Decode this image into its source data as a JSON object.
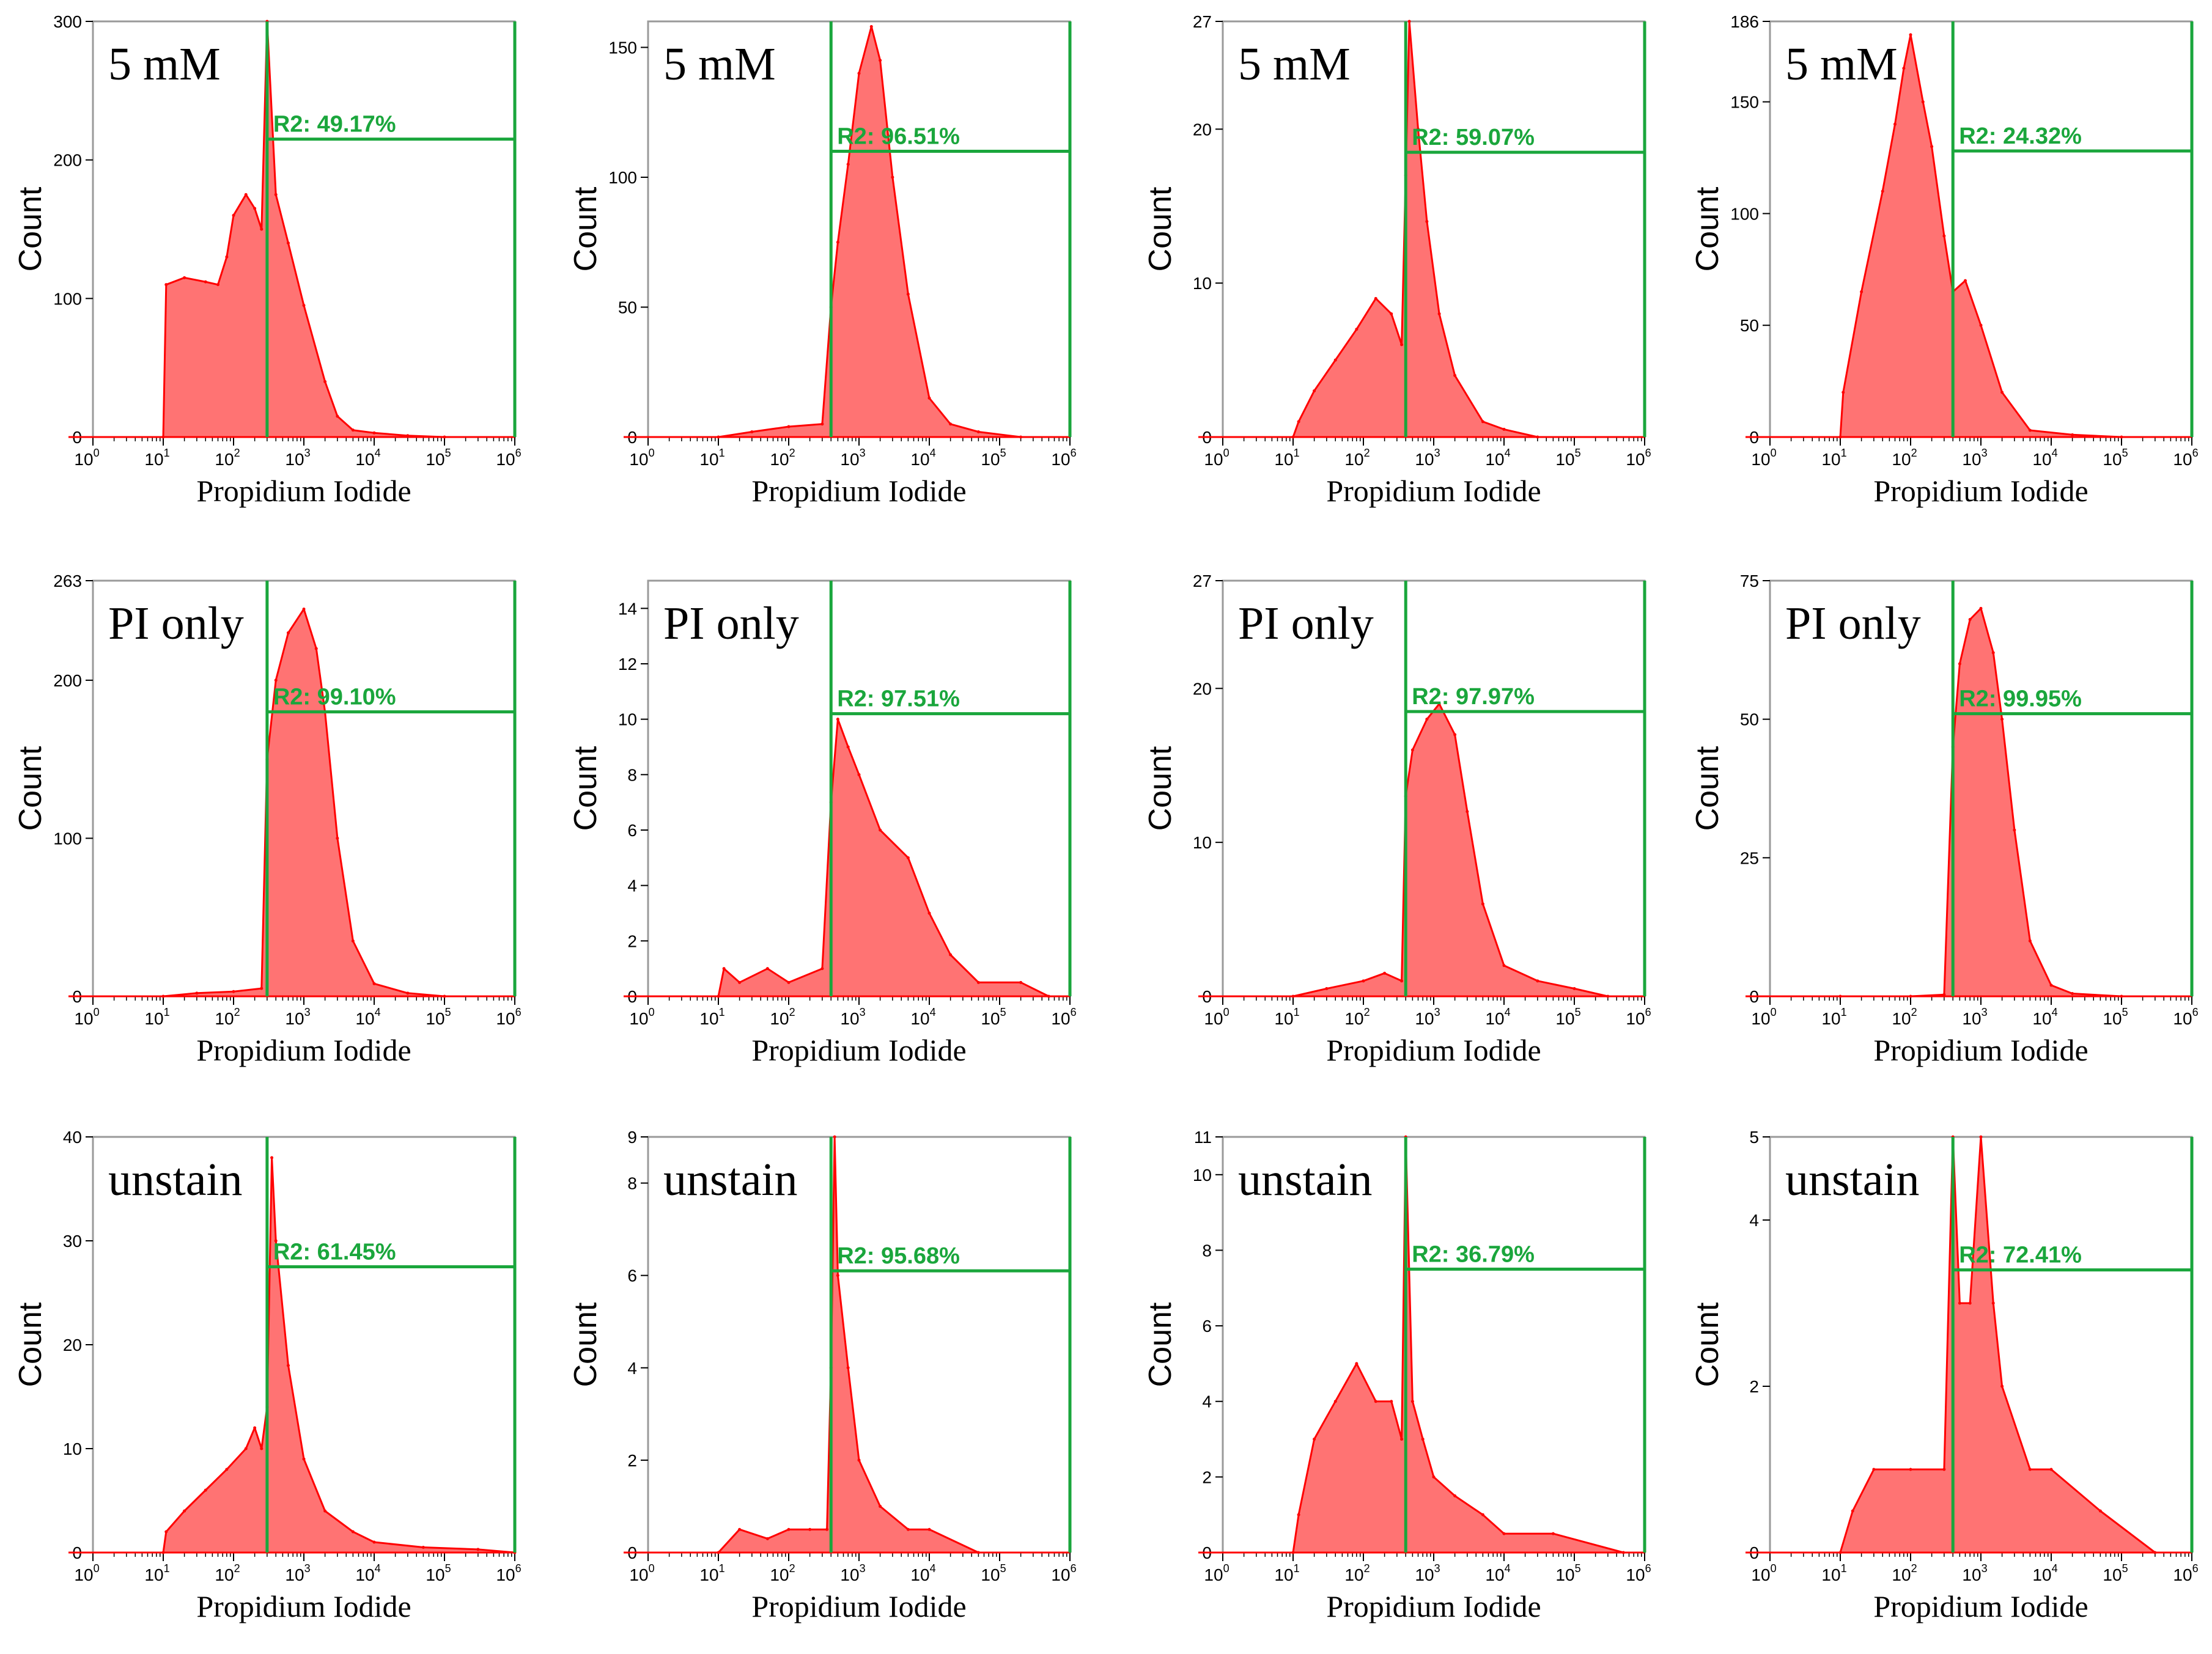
{
  "colors": {
    "histogram": "#ff0000",
    "gate": "#1aa63c",
    "frame": "#9a9a9a"
  },
  "chart_data": [
    {
      "type": "area",
      "scale": "log-x",
      "xlabel": "Propidium Iodide",
      "ylabel": "Count",
      "label": "5 mM",
      "ylim": [
        0,
        300
      ],
      "yticks": [
        0,
        100,
        200,
        300
      ],
      "gate_label": "R2: 49.17%",
      "gate_x": 300,
      "gate_level": 215,
      "x": [
        10,
        11,
        20,
        40,
        60,
        80,
        100,
        150,
        200,
        250,
        300,
        400,
        600,
        1000,
        2000,
        3000,
        5000,
        10000,
        30000,
        100000
      ],
      "y": [
        0,
        110,
        115,
        112,
        110,
        130,
        160,
        175,
        165,
        150,
        300,
        175,
        140,
        95,
        40,
        15,
        5,
        3,
        1,
        0
      ]
    },
    {
      "type": "area",
      "scale": "log-x",
      "xlabel": "Propidium Iodide",
      "ylabel": "Count",
      "label": "5 mM",
      "ylim": [
        0,
        160
      ],
      "yticks": [
        0,
        50,
        100,
        150
      ],
      "gate_label": "R2: 96.51%",
      "gate_x": 400,
      "gate_level": 110,
      "x": [
        10,
        30,
        100,
        300,
        400,
        500,
        700,
        1000,
        1500,
        2000,
        3000,
        5000,
        10000,
        20000,
        50000,
        200000
      ],
      "y": [
        0,
        2,
        4,
        5,
        50,
        75,
        105,
        140,
        158,
        145,
        100,
        55,
        15,
        5,
        2,
        0
      ]
    },
    {
      "type": "area",
      "scale": "log-x",
      "xlabel": "Propidium Iodide",
      "ylabel": "Count",
      "label": "5 mM",
      "ylim": [
        0,
        27
      ],
      "yticks": [
        0,
        10,
        20,
        27
      ],
      "gate_label": "R2: 59.07%",
      "gate_x": 400,
      "gate_level": 18.5,
      "x": [
        10,
        12,
        20,
        40,
        80,
        150,
        250,
        350,
        400,
        450,
        600,
        800,
        1200,
        2000,
        5000,
        10000,
        30000
      ],
      "y": [
        0,
        1,
        3,
        5,
        7,
        9,
        8,
        6,
        17,
        27,
        20,
        14,
        8,
        4,
        1,
        0.5,
        0
      ]
    },
    {
      "type": "area",
      "scale": "log-x",
      "xlabel": "Propidium Iodide",
      "ylabel": "Count",
      "label": "5 mM",
      "ylim": [
        0,
        186
      ],
      "yticks": [
        0,
        50,
        100,
        150,
        186
      ],
      "gate_label": "R2: 24.32%",
      "gate_x": 400,
      "gate_level": 128,
      "x": [
        10,
        11,
        20,
        40,
        60,
        80,
        100,
        150,
        200,
        300,
        400,
        600,
        1000,
        2000,
        5000,
        20000,
        100000
      ],
      "y": [
        0,
        20,
        65,
        110,
        140,
        165,
        180,
        150,
        130,
        90,
        65,
        70,
        50,
        20,
        3,
        1,
        0
      ]
    },
    {
      "type": "area",
      "scale": "log-x",
      "xlabel": "Propidium Iodide",
      "ylabel": "Count",
      "label": "PI only",
      "ylim": [
        0,
        263
      ],
      "yticks": [
        0,
        100,
        200,
        263
      ],
      "gate_label": "R2: 99.10%",
      "gate_x": 300,
      "gate_level": 180,
      "x": [
        10,
        30,
        100,
        250,
        300,
        400,
        600,
        1000,
        1500,
        2000,
        3000,
        5000,
        10000,
        30000,
        100000
      ],
      "y": [
        0,
        2,
        3,
        5,
        150,
        200,
        230,
        245,
        220,
        180,
        100,
        35,
        8,
        2,
        0
      ]
    },
    {
      "type": "area",
      "scale": "log-x",
      "xlabel": "Propidium Iodide",
      "ylabel": "Count",
      "label": "PI only",
      "ylim": [
        0,
        15
      ],
      "yticks": [
        0,
        2,
        4,
        6,
        8,
        10,
        12,
        14
      ],
      "gate_label": "R2: 97.51%",
      "gate_x": 400,
      "gate_level": 10.2,
      "x": [
        10,
        12,
        20,
        50,
        100,
        300,
        400,
        500,
        700,
        1000,
        2000,
        5000,
        10000,
        20000,
        50000,
        200000,
        500000
      ],
      "y": [
        0,
        1,
        0.5,
        1,
        0.5,
        1,
        7,
        10,
        9,
        8,
        6,
        5,
        3,
        1.5,
        0.5,
        0.5,
        0
      ]
    },
    {
      "type": "area",
      "scale": "log-x",
      "xlabel": "Propidium Iodide",
      "ylabel": "Count",
      "label": "PI only",
      "ylim": [
        0,
        27
      ],
      "yticks": [
        0,
        10,
        20,
        27
      ],
      "gate_label": "R2: 97.97%",
      "gate_x": 400,
      "gate_level": 18.5,
      "x": [
        10,
        30,
        100,
        200,
        350,
        400,
        500,
        800,
        1200,
        2000,
        3000,
        5000,
        10000,
        30000,
        100000,
        300000
      ],
      "y": [
        0,
        0.5,
        1,
        1.5,
        1,
        13,
        16,
        18,
        19,
        17,
        12,
        6,
        2,
        1,
        0.5,
        0
      ]
    },
    {
      "type": "area",
      "scale": "log-x",
      "xlabel": "Propidium Iodide",
      "ylabel": "Count",
      "label": "PI only",
      "ylim": [
        0,
        75
      ],
      "yticks": [
        0,
        25,
        50,
        75
      ],
      "gate_label": "R2: 99.95%",
      "gate_x": 400,
      "gate_level": 51,
      "x": [
        10,
        100,
        300,
        400,
        500,
        700,
        1000,
        1500,
        2000,
        3000,
        5000,
        10000,
        20000,
        100000
      ],
      "y": [
        0,
        0,
        0.3,
        45,
        60,
        68,
        70,
        62,
        50,
        30,
        10,
        2,
        0.5,
        0
      ]
    },
    {
      "type": "area",
      "scale": "log-x",
      "xlabel": "Propidium Iodide",
      "ylabel": "Count",
      "label": "unstain",
      "ylim": [
        0,
        40
      ],
      "yticks": [
        0,
        10,
        20,
        30,
        40
      ],
      "gate_label": "R2: 61.45%",
      "gate_x": 300,
      "gate_level": 27.5,
      "x": [
        10,
        11,
        20,
        40,
        80,
        150,
        200,
        250,
        300,
        350,
        400,
        600,
        1000,
        2000,
        5000,
        10000,
        50000,
        300000,
        1000000
      ],
      "y": [
        0,
        2,
        4,
        6,
        8,
        10,
        12,
        10,
        14,
        38,
        30,
        18,
        9,
        4,
        2,
        1,
        0.5,
        0.3,
        0
      ]
    },
    {
      "type": "area",
      "scale": "log-x",
      "xlabel": "Propidium Iodide",
      "ylabel": "Count",
      "label": "unstain",
      "ylim": [
        0,
        9
      ],
      "yticks": [
        0,
        2,
        4,
        6,
        8,
        9
      ],
      "gate_label": "R2: 95.68%",
      "gate_x": 400,
      "gate_level": 6.1,
      "x": [
        10,
        20,
        50,
        100,
        200,
        350,
        400,
        450,
        500,
        700,
        1000,
        2000,
        5000,
        10000,
        50000
      ],
      "y": [
        0,
        0.5,
        0.3,
        0.5,
        0.5,
        0.5,
        4,
        9,
        6,
        4,
        2,
        1,
        0.5,
        0.5,
        0
      ]
    },
    {
      "type": "area",
      "scale": "log-x",
      "xlabel": "Propidium Iodide",
      "ylabel": "Count",
      "label": "unstain",
      "ylim": [
        0,
        11
      ],
      "yticks": [
        0,
        2,
        4,
        6,
        8,
        10,
        11
      ],
      "gate_label": "R2: 36.79%",
      "gate_x": 400,
      "gate_level": 7.5,
      "x": [
        10,
        12,
        20,
        40,
        80,
        150,
        250,
        350,
        400,
        500,
        700,
        1000,
        2000,
        5000,
        10000,
        50000,
        500000
      ],
      "y": [
        0,
        1,
        3,
        4,
        5,
        4,
        4,
        3,
        11,
        4,
        3,
        2,
        1.5,
        1,
        0.5,
        0.5,
        0
      ]
    },
    {
      "type": "area",
      "scale": "log-x",
      "xlabel": "Propidium Iodide",
      "ylabel": "Count",
      "label": "unstain",
      "ylim": [
        0,
        5
      ],
      "yticks": [
        0,
        2,
        4,
        5
      ],
      "gate_label": "R2: 72.41%",
      "gate_x": 400,
      "gate_level": 3.4,
      "x": [
        10,
        15,
        30,
        100,
        300,
        400,
        500,
        700,
        1000,
        1500,
        2000,
        5000,
        10000,
        50000,
        300000
      ],
      "y": [
        0,
        0.5,
        1,
        1,
        1,
        5,
        3,
        3,
        5,
        3,
        2,
        1,
        1,
        0.5,
        0
      ]
    }
  ]
}
